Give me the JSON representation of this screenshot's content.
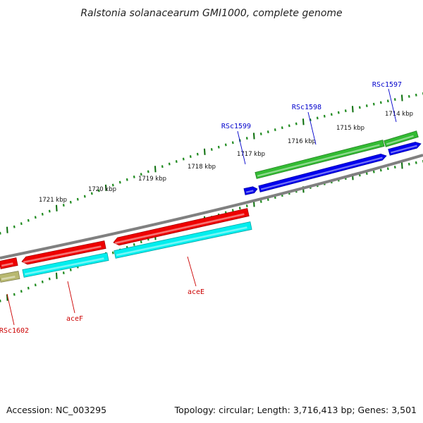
{
  "title": "Ralstonia solanacearum GMI1000, complete genome",
  "footer": {
    "accession": "Accession: NC_003295",
    "summary": "Topology: circular; Length: 3,716,413 bp; Genes: 3,501"
  },
  "colors": {
    "backbone": "#808080",
    "major_tick": "#0a6e0a",
    "minor_tick": "#1e8a1e",
    "forward_label": "#0000cc",
    "reverse_label": "#cc0000",
    "gene_green": "#33bb33",
    "gene_blue": "#0000ee",
    "gene_red": "#ee0000",
    "gene_cyan": "#00eeee",
    "gene_olive": "#b8b870"
  },
  "scale_labels": [
    "1714 kbp",
    "1715 kbp",
    "1716 kbp",
    "1717 kbp",
    "1718 kbp",
    "1719 kbp",
    "1720 kbp",
    "1721 kbp"
  ],
  "genes": [
    {
      "id": "RSc1597",
      "label": "RSc1597",
      "strand": "forward"
    },
    {
      "id": "RSc1598",
      "label": "RSc1598",
      "strand": "forward"
    },
    {
      "id": "RSc1599",
      "label": "RSc1599",
      "strand": "forward"
    },
    {
      "id": "aceE",
      "label": "aceE",
      "strand": "reverse"
    },
    {
      "id": "aceF",
      "label": "aceF",
      "strand": "reverse"
    },
    {
      "id": "RSc1602",
      "label": "RSc1602",
      "strand": "reverse"
    }
  ]
}
